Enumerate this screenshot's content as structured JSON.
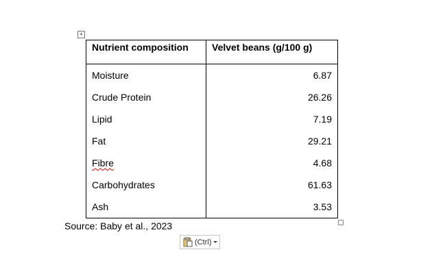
{
  "table": {
    "header": [
      "Nutrient composition",
      "Velvet beans (g/100 g)"
    ],
    "rows": [
      [
        "Moisture",
        6.87
      ],
      [
        "Crude Protein",
        26.26
      ],
      [
        "Lipid",
        7.19
      ],
      [
        "Fat",
        29.21
      ],
      [
        "Fibre",
        4.68
      ],
      [
        "Carbohydrates",
        61.63
      ],
      [
        "Ash",
        3.53
      ]
    ]
  },
  "source": "Source: Baby et al., 2023",
  "paste_button": "(Ctrl)"
}
